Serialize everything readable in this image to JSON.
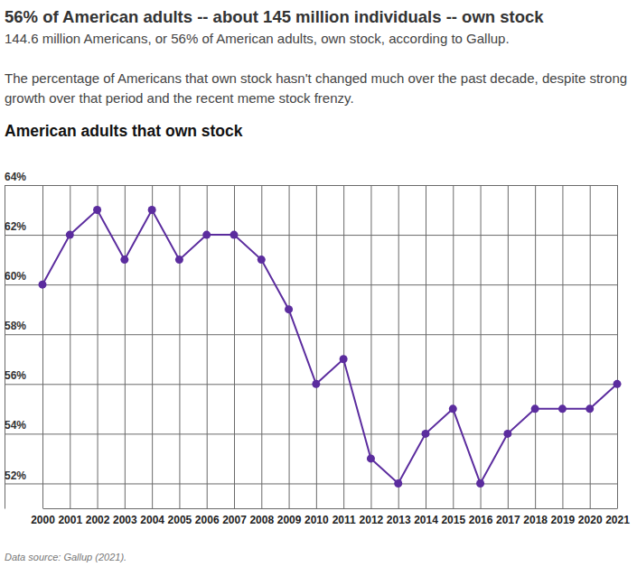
{
  "chart_data": {
    "type": "line",
    "title": "56% of American adults -- about 145 million individuals -- own stock",
    "subtitle": "144.6 million Americans, or 56% of American adults, own stock, according to Gallup.",
    "description": "The percentage of Americans that own stock hasn't changed much over the past decade, despite strong growth over that period and the recent meme stock frenzy.",
    "chart_title": "American adults that own stock",
    "source": "Data source: Gallup (2021).",
    "categories": [
      "2000",
      "2001",
      "2002",
      "2003",
      "2004",
      "2005",
      "2006",
      "2007",
      "2008",
      "2009",
      "2010",
      "2011",
      "2012",
      "2013",
      "2014",
      "2015",
      "2016",
      "2017",
      "2018",
      "2019",
      "2020",
      "2021"
    ],
    "values": [
      60,
      62,
      63,
      61,
      63,
      61,
      62,
      62,
      61,
      59,
      56,
      57,
      53,
      52,
      54,
      55,
      52,
      54,
      55,
      55,
      55,
      56
    ],
    "color": "#5b2c9e",
    "marker": "circle",
    "ylim": [
      51,
      64
    ],
    "yticks": [
      {
        "value": 52,
        "label": "52%"
      },
      {
        "value": 54,
        "label": "54%"
      },
      {
        "value": 56,
        "label": "56%"
      },
      {
        "value": 58,
        "label": "58%"
      },
      {
        "value": 60,
        "label": "60%"
      },
      {
        "value": 62,
        "label": "62%"
      },
      {
        "value": 64,
        "label": "64%"
      }
    ],
    "grid": true
  }
}
